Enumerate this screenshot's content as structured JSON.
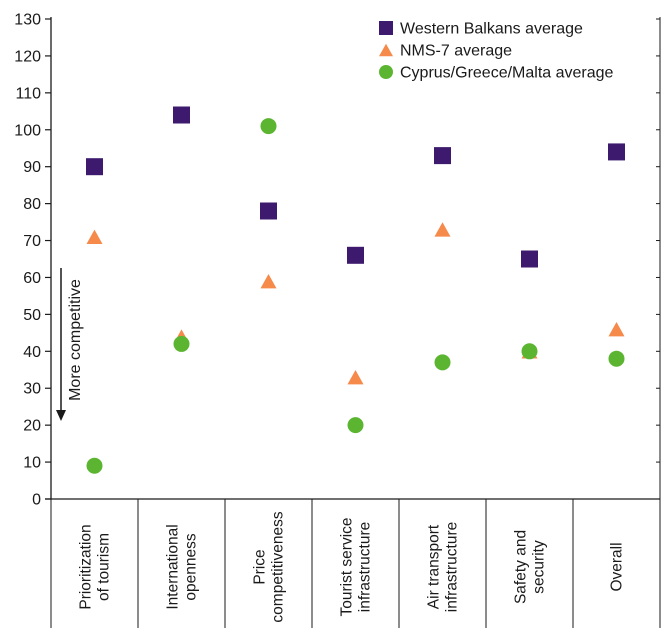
{
  "chart_data": {
    "type": "scatter",
    "categories": [
      [
        "Prioritization",
        "of tourism"
      ],
      [
        "International",
        "openness"
      ],
      [
        "Price",
        "competitiveness"
      ],
      [
        "Tourist service",
        "infrastructure"
      ],
      [
        "Air transport",
        "infrastructure"
      ],
      [
        "Safety and",
        "security"
      ],
      [
        "Overall"
      ]
    ],
    "series": [
      {
        "name": "Western Balkans average",
        "marker": "square",
        "color": "#3d1a6e",
        "values": [
          90,
          104,
          78,
          66,
          93,
          65,
          94
        ]
      },
      {
        "name": "NMS-7 average",
        "marker": "triangle",
        "color": "#f58a4b",
        "values": [
          71,
          44,
          59,
          33,
          73,
          40,
          46
        ]
      },
      {
        "name": "Cyprus/Greece/Malta average",
        "marker": "circle",
        "color": "#5cb531",
        "values": [
          9,
          42,
          101,
          20,
          37,
          40,
          38
        ]
      }
    ],
    "ylim": [
      0,
      130
    ],
    "yticks": [
      0,
      10,
      20,
      30,
      40,
      50,
      60,
      70,
      80,
      90,
      100,
      110,
      120,
      130
    ],
    "legend_position": "top-right",
    "annotation": "More competitive",
    "title": "",
    "xlabel": "",
    "ylabel": ""
  }
}
